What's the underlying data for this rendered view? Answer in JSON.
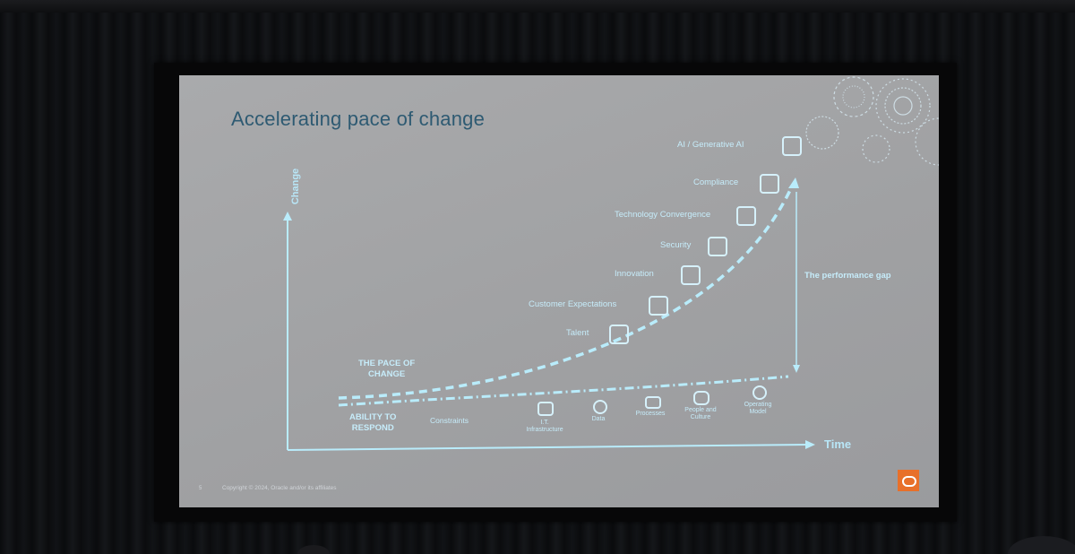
{
  "slide": {
    "title": "Accelerating pace of change",
    "y_axis_label": "Change",
    "x_axis_label": "Time",
    "pace_label": "THE PACE OF\nCHANGE",
    "ability_label": "ABILITY TO\nRESPOND",
    "performance_gap": "The performance gap",
    "milestones": [
      {
        "label": "AI / Generative AI",
        "icon": "lightbulb-icon"
      },
      {
        "label": "Compliance",
        "icon": "document-icon"
      },
      {
        "label": "Technology Convergence",
        "icon": "devices-icon"
      },
      {
        "label": "Security",
        "icon": "lock-icon"
      },
      {
        "label": "Innovation",
        "icon": "lightbulb-icon"
      },
      {
        "label": "Customer Expectations",
        "icon": "people-icon"
      },
      {
        "label": "Talent",
        "icon": "person-icon"
      }
    ],
    "constraints": {
      "label": "Constraints",
      "items": [
        "I.T.\nInfrastructure",
        "Data",
        "Processes",
        "People and\nCulture",
        "Operating\nModel"
      ]
    },
    "footer": {
      "page_number": "5",
      "copyright": "Copyright © 2024, Oracle and/or its affiliates"
    },
    "colors": {
      "accent": "#b9ecfb",
      "title": "#2e5a72",
      "logo": "#e8702a"
    }
  }
}
